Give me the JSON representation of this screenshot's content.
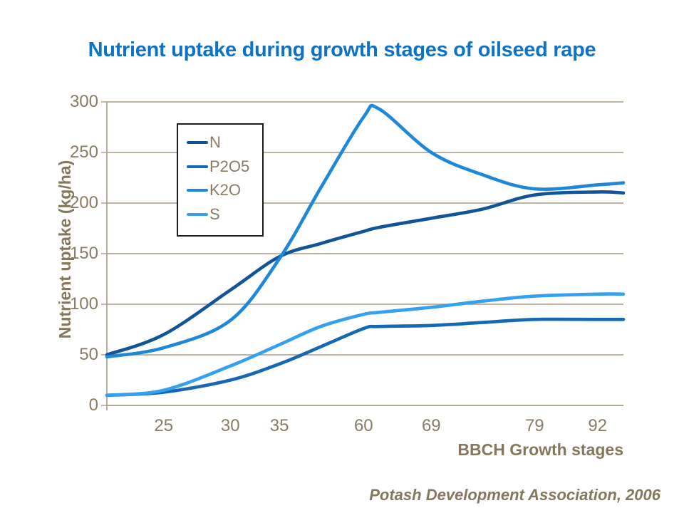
{
  "slide": {
    "credit": "Potash Development Association, 2006"
  },
  "colors": {
    "title": "#0E72C6",
    "tick_text": "#8A7C64",
    "bold_text": "#85775C",
    "gridline": "#A79B89",
    "axis_line": "#A79B89",
    "legend_border": "#1c1c1c",
    "background": "#FFFFFF"
  },
  "chart_data": {
    "type": "line",
    "title": "Nutrient uptake during growth stages of oilseed rape",
    "xlabel": "BBCH Growth stages",
    "ylabel": "Nutrient uptake (kg/ha)",
    "ylim": [
      0,
      300
    ],
    "yticks": [
      0,
      50,
      100,
      150,
      200,
      250,
      300
    ],
    "grid": "horizontal",
    "legend_position": "upper-left-inside",
    "x_tick_labels": [
      "25",
      "30",
      "35",
      "60",
      "69",
      "79",
      "92"
    ],
    "x_tick_pos": [
      0.11,
      0.239,
      0.334,
      0.497,
      0.628,
      0.828,
      0.95
    ],
    "x_grid": [
      0,
      0.11,
      0.239,
      0.334,
      0.414,
      0.497,
      0.527,
      0.628,
      0.727,
      0.828,
      0.95,
      1.0
    ],
    "series": [
      {
        "name": "N",
        "color": "#12549A",
        "values": [
          50,
          70,
          114,
          147,
          160,
          172,
          176,
          185,
          194,
          208,
          211,
          210
        ]
      },
      {
        "name": "P2O5",
        "color": "#1768B2",
        "values": [
          10,
          13,
          25,
          41,
          58,
          76,
          78,
          79,
          82,
          85,
          85,
          85
        ]
      },
      {
        "name": "K2O",
        "color": "#1F87D8",
        "values": [
          48,
          57,
          84,
          145,
          215,
          285,
          293,
          250,
          228,
          214,
          218,
          220
        ]
      },
      {
        "name": "S",
        "color": "#35A0F0",
        "values": [
          10,
          15,
          39,
          60,
          78,
          90,
          92,
          97,
          103,
          108,
          110,
          110
        ]
      }
    ],
    "readings_at_stages": [
      {
        "stage": "25",
        "N": 70,
        "P2O5": 13,
        "K2O": 57,
        "S": 15
      },
      {
        "stage": "30",
        "N": 114,
        "P2O5": 25,
        "K2O": 84,
        "S": 39
      },
      {
        "stage": "35",
        "N": 147,
        "P2O5": 41,
        "K2O": 145,
        "S": 60
      },
      {
        "stage": "60",
        "N": 172,
        "P2O5": 76,
        "K2O": 285,
        "S": 90
      },
      {
        "stage": "69",
        "N": 185,
        "P2O5": 79,
        "K2O": 250,
        "S": 97
      },
      {
        "stage": "79",
        "N": 208,
        "P2O5": 85,
        "K2O": 214,
        "S": 108
      },
      {
        "stage": "92",
        "N": 211,
        "P2O5": 85,
        "K2O": 218,
        "S": 110
      }
    ]
  }
}
